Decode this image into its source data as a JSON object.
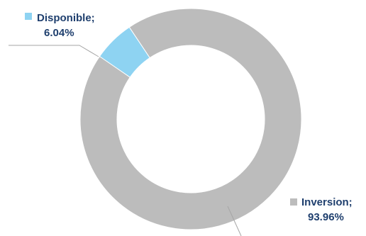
{
  "chart_data": {
    "type": "pie",
    "variant": "donut",
    "slices": [
      {
        "name": "Disponible",
        "value": 6.04,
        "label_name": "Disponible;",
        "label_value": "6.04%",
        "color": "#8ed3f2"
      },
      {
        "name": "Inversion",
        "value": 93.96,
        "label_name": "Inversion;",
        "label_value": "93.96%",
        "color": "#bcbcbc"
      }
    ],
    "label_color": "#1f3f6e",
    "leader_color": "#a6a6a6"
  }
}
